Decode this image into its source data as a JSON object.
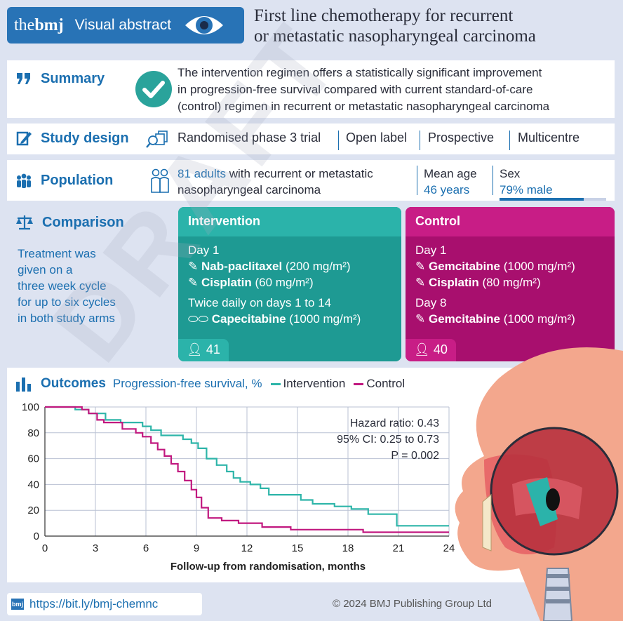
{
  "header": {
    "logo_the": "the",
    "logo_bmj": "bmj",
    "label": "Visual abstract",
    "title_line1": "First line chemotherapy for recurrent",
    "title_line2": "or metastatic nasopharyngeal carcinoma"
  },
  "summary": {
    "label": "Summary",
    "text_line1": "The intervention regimen offers a statistically significant improvement",
    "text_line2": "in progression-free survival compared with current standard-of-care",
    "text_line3": "(control) regimen in recurrent or metastatic nasopharyngeal carcinoma"
  },
  "study_design": {
    "label": "Study design",
    "items": [
      "Randomised phase 3 trial",
      "Open label",
      "Prospective",
      "Multicentre"
    ]
  },
  "population": {
    "label": "Population",
    "count": "81 adults",
    "desc_line1": " with recurrent or metastatic",
    "desc_line2": "nasopharyngeal carcinoma",
    "age_label": "Mean age",
    "age_value": "46 years",
    "sex_label": "Sex",
    "sex_value": "79% male",
    "male_fraction": 0.79
  },
  "comparison": {
    "label": "Comparison",
    "note": [
      "Treatment was",
      "given on a",
      "three week cycle",
      "for up to six cycles",
      "in both study arms"
    ],
    "intervention": {
      "title": "Intervention",
      "day1": "Day 1",
      "drug1_name": "Nab-paclitaxel",
      "drug1_dose": " (200 mg/m²)",
      "drug2_name": "Cisplatin",
      "drug2_dose": " (60 mg/m²)",
      "schedule2": "Twice daily on days 1 to 14",
      "drug3_name": "Capecitabine",
      "drug3_dose": " (1000 mg/m²)",
      "n": "41"
    },
    "control": {
      "title": "Control",
      "day1": "Day 1",
      "drug1_name": "Gemcitabine",
      "drug1_dose": " (1000 mg/m²)",
      "drug2_name": "Cisplatin",
      "drug2_dose": " (80 mg/m²)",
      "day8": "Day 8",
      "drug3_name": "Gemcitabine",
      "drug3_dose": " (1000 mg/m²)",
      "n": "40"
    }
  },
  "outcomes": {
    "label": "Outcomes",
    "metric": "Progression-free survival, %",
    "legend_intervention": "Intervention",
    "legend_control": "Control",
    "hazard_ratio": "Hazard ratio: 0.43",
    "ci": "95% CI: 0.25 to 0.73",
    "p_value": "P = 0.002"
  },
  "chart_data": {
    "type": "line",
    "title": "Progression-free survival, %",
    "xlabel": "Follow-up from randomisation, months",
    "ylabel": "",
    "xlim": [
      0,
      24
    ],
    "ylim": [
      0,
      100
    ],
    "xticks": [
      0,
      3,
      6,
      9,
      12,
      15,
      18,
      21,
      24
    ],
    "yticks": [
      0,
      20,
      40,
      60,
      80,
      100
    ],
    "grid": true,
    "legend": "top",
    "series": [
      {
        "name": "Intervention",
        "color": "#2eb5a9",
        "step": true,
        "points": [
          [
            0,
            100
          ],
          [
            1.8,
            100
          ],
          [
            1.8,
            98
          ],
          [
            2.6,
            98
          ],
          [
            2.6,
            95
          ],
          [
            3.6,
            95
          ],
          [
            3.6,
            90
          ],
          [
            4.5,
            90
          ],
          [
            4.5,
            88
          ],
          [
            5.8,
            88
          ],
          [
            5.8,
            85
          ],
          [
            6.3,
            85
          ],
          [
            6.3,
            82
          ],
          [
            6.9,
            82
          ],
          [
            6.9,
            78
          ],
          [
            8.2,
            78
          ],
          [
            8.2,
            75
          ],
          [
            8.7,
            75
          ],
          [
            8.7,
            72
          ],
          [
            9.1,
            72
          ],
          [
            9.1,
            68
          ],
          [
            9.6,
            68
          ],
          [
            9.6,
            60
          ],
          [
            10.2,
            60
          ],
          [
            10.2,
            55
          ],
          [
            10.8,
            55
          ],
          [
            10.8,
            50
          ],
          [
            11.2,
            50
          ],
          [
            11.2,
            45
          ],
          [
            11.6,
            45
          ],
          [
            11.6,
            42
          ],
          [
            12.2,
            42
          ],
          [
            12.2,
            40
          ],
          [
            12.8,
            40
          ],
          [
            12.8,
            37
          ],
          [
            13.3,
            37
          ],
          [
            13.3,
            32
          ],
          [
            15.2,
            32
          ],
          [
            15.2,
            28
          ],
          [
            15.9,
            28
          ],
          [
            15.9,
            25
          ],
          [
            17.2,
            25
          ],
          [
            17.2,
            23
          ],
          [
            18.2,
            23
          ],
          [
            18.2,
            21
          ],
          [
            19.2,
            21
          ],
          [
            19.2,
            17
          ],
          [
            20.9,
            17
          ],
          [
            20.9,
            8
          ],
          [
            24,
            8
          ]
        ]
      },
      {
        "name": "Control",
        "color": "#c1187f",
        "step": true,
        "points": [
          [
            0,
            100
          ],
          [
            2.2,
            100
          ],
          [
            2.2,
            98
          ],
          [
            2.6,
            98
          ],
          [
            2.6,
            95
          ],
          [
            3.1,
            95
          ],
          [
            3.1,
            90
          ],
          [
            3.5,
            90
          ],
          [
            3.5,
            88
          ],
          [
            4.6,
            88
          ],
          [
            4.6,
            83
          ],
          [
            5.4,
            83
          ],
          [
            5.4,
            80
          ],
          [
            5.8,
            80
          ],
          [
            5.8,
            77
          ],
          [
            6.3,
            77
          ],
          [
            6.3,
            72
          ],
          [
            6.7,
            72
          ],
          [
            6.7,
            67
          ],
          [
            7.1,
            67
          ],
          [
            7.1,
            62
          ],
          [
            7.5,
            62
          ],
          [
            7.5,
            56
          ],
          [
            7.9,
            56
          ],
          [
            7.9,
            50
          ],
          [
            8.3,
            50
          ],
          [
            8.3,
            43
          ],
          [
            8.7,
            43
          ],
          [
            8.7,
            36
          ],
          [
            9.0,
            36
          ],
          [
            9.0,
            30
          ],
          [
            9.3,
            30
          ],
          [
            9.3,
            22
          ],
          [
            9.7,
            22
          ],
          [
            9.7,
            14
          ],
          [
            10.5,
            14
          ],
          [
            10.5,
            12
          ],
          [
            11.5,
            12
          ],
          [
            11.5,
            10
          ],
          [
            12.9,
            10
          ],
          [
            12.9,
            7
          ],
          [
            14.6,
            7
          ],
          [
            14.6,
            5
          ],
          [
            18.9,
            5
          ],
          [
            18.9,
            3
          ],
          [
            24,
            3
          ]
        ]
      }
    ]
  },
  "footer": {
    "link": "https://bit.ly/bmj-chemnc",
    "copyright": "© 2024 BMJ Publishing Group Ltd"
  },
  "watermark": "DRAFT"
}
